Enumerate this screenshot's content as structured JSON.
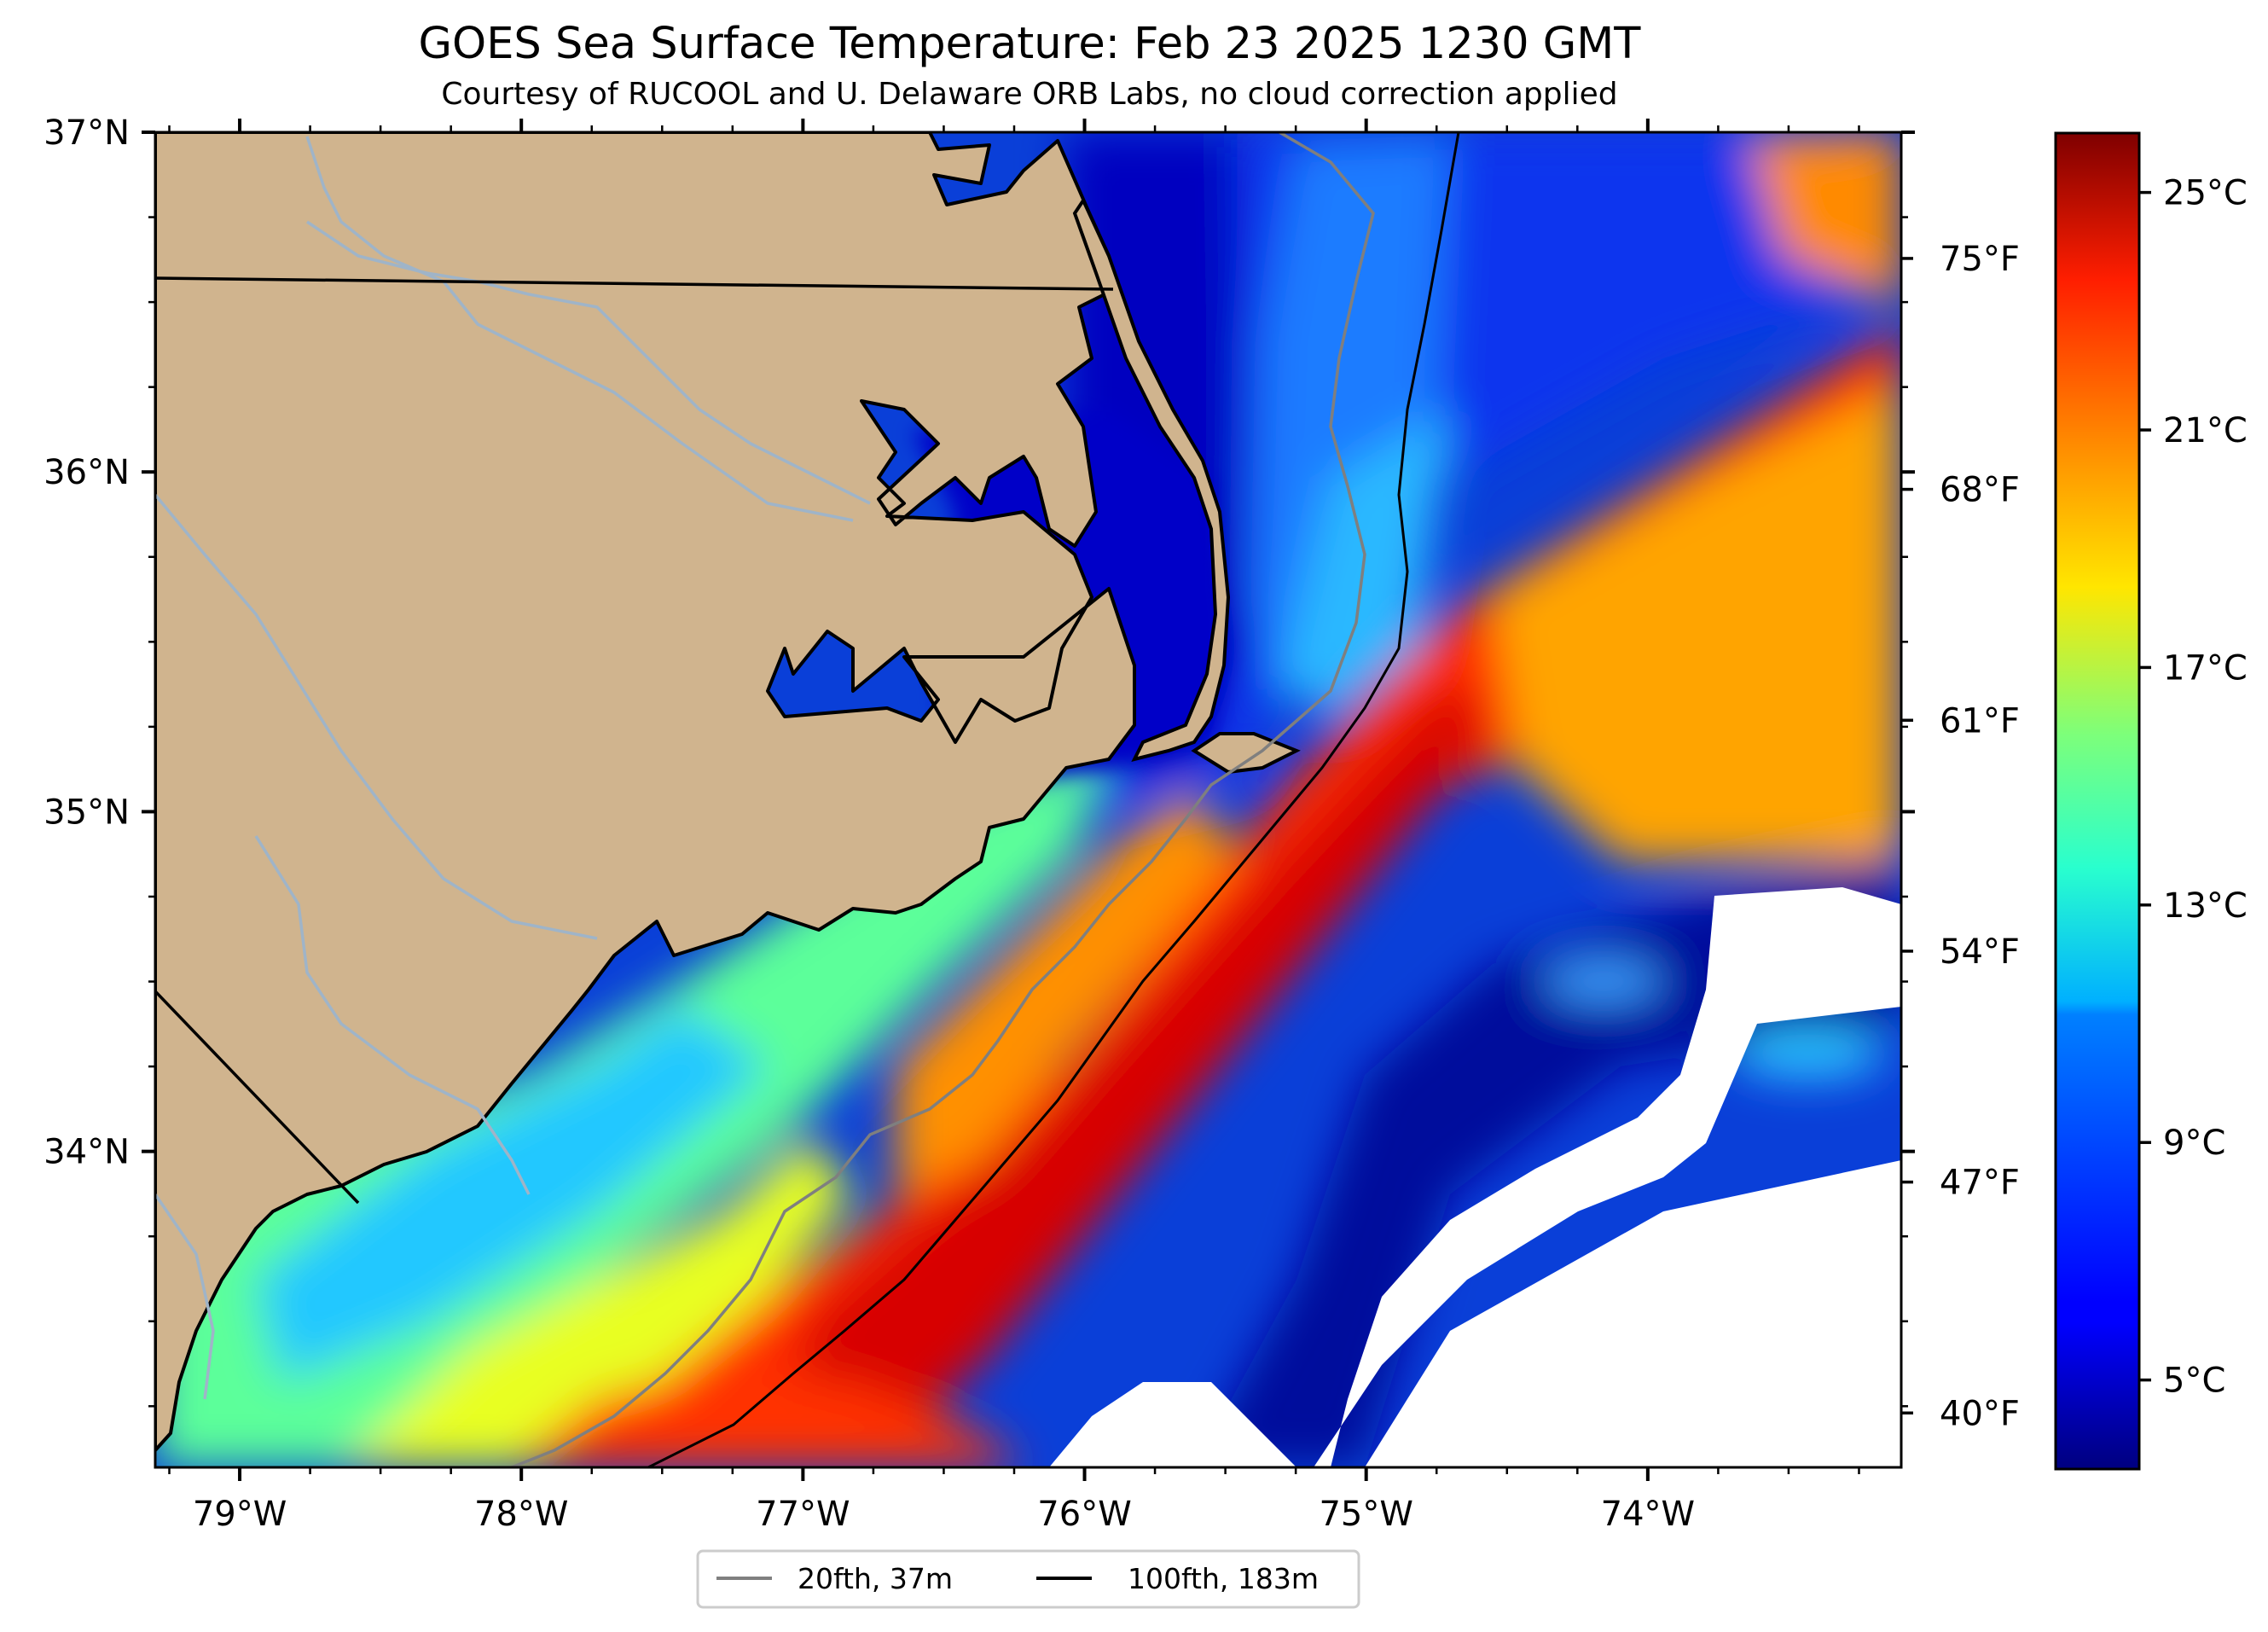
{
  "figure": {
    "title": "GOES Sea Surface Temperature: Feb 23 2025 1230 GMT",
    "subtitle": "Courtesy of RUCOOL and U. Delaware ORB Labs, no cloud correction applied"
  },
  "map": {
    "lon_range": [
      -79.3,
      -73.1
    ],
    "lat_range": [
      33.07,
      37.0
    ],
    "land_color": "#d0b48e",
    "coastline_color": "#000000",
    "river_color": "#9fb4c8",
    "no_data_color": "#ffffff"
  },
  "axes": {
    "x_ticks": [
      {
        "lon": -79,
        "label": "79°W"
      },
      {
        "lon": -78,
        "label": "78°W"
      },
      {
        "lon": -77,
        "label": "77°W"
      },
      {
        "lon": -76,
        "label": "76°W"
      },
      {
        "lon": -75,
        "label": "75°W"
      },
      {
        "lon": -74,
        "label": "74°W"
      }
    ],
    "y_ticks": [
      {
        "lat": 37,
        "label": "37°N"
      },
      {
        "lat": 36,
        "label": "36°N"
      },
      {
        "lat": 35,
        "label": "35°N"
      },
      {
        "lat": 34,
        "label": "34°N"
      }
    ]
  },
  "colorbar": {
    "cmap": "jet",
    "range_c": [
      3.5,
      26.0
    ],
    "celsius_ticks": [
      {
        "value": 25,
        "label": "25°C"
      },
      {
        "value": 21,
        "label": "21°C"
      },
      {
        "value": 17,
        "label": "17°C"
      },
      {
        "value": 13,
        "label": "13°C"
      },
      {
        "value": 9,
        "label": "9°C"
      },
      {
        "value": 5,
        "label": "5°C"
      }
    ],
    "fahrenheit_ticks": [
      {
        "value": 75,
        "label": "75°F"
      },
      {
        "value": 68,
        "label": "68°F"
      },
      {
        "value": 61,
        "label": "61°F"
      },
      {
        "value": 54,
        "label": "54°F"
      },
      {
        "value": 47,
        "label": "47°F"
      },
      {
        "value": 40,
        "label": "40°F"
      }
    ]
  },
  "legend": {
    "placement": "bottom-center",
    "items": [
      {
        "label": "20fth, 37m",
        "color": "#808080"
      },
      {
        "label": "100fth, 183m",
        "color": "#000000"
      }
    ]
  }
}
